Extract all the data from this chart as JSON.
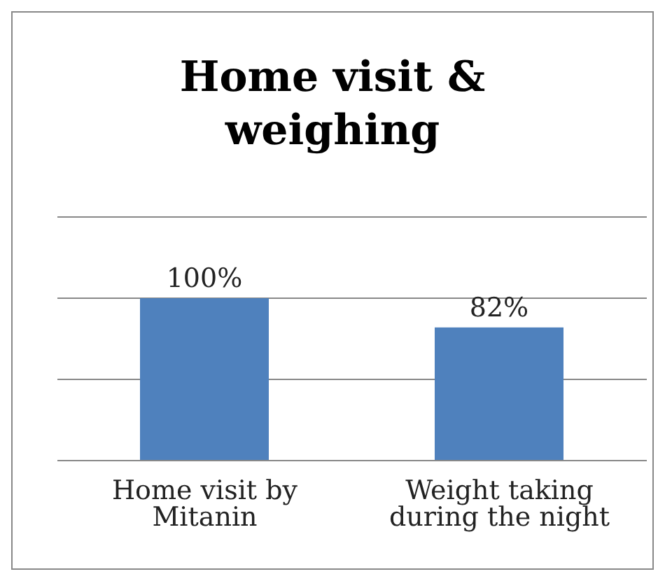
{
  "chart_data": {
    "type": "bar",
    "title": "Home visit & weighing",
    "categories": [
      "Home visit by Mitanin",
      "Weight taking during the night"
    ],
    "values": [
      100,
      82
    ],
    "color": "#4f81bd",
    "value_labels": [
      "100%",
      "82%"
    ],
    "ylim": [
      0,
      150
    ],
    "yticks": [
      {
        "value": 0,
        "label": null
      },
      {
        "value": 50,
        "label": null
      },
      {
        "value": 100,
        "label": null
      },
      {
        "value": 150,
        "label": null
      }
    ],
    "tick_labels": "x",
    "grid": "y"
  }
}
